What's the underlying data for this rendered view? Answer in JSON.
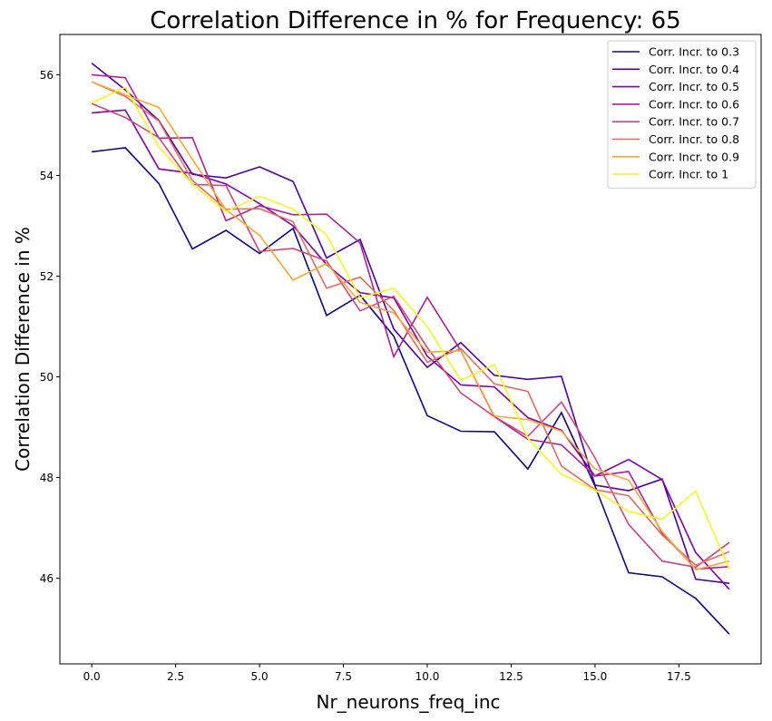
{
  "chart_data": {
    "type": "line",
    "title": "Correlation Difference in % for Frequency:  65",
    "xlabel": "Nr_neurons_freq_inc",
    "ylabel": "Correlation Difference in %",
    "xlim": [
      -0.95,
      19.95
    ],
    "ylim": [
      44.3,
      56.8
    ],
    "xticks": [
      0.0,
      2.5,
      5.0,
      7.5,
      10.0,
      12.5,
      15.0,
      17.5
    ],
    "xtick_labels": [
      "0.0",
      "2.5",
      "5.0",
      "7.5",
      "10.0",
      "12.5",
      "15.0",
      "17.5"
    ],
    "yticks": [
      46,
      48,
      50,
      52,
      54,
      56
    ],
    "ytick_labels": [
      "46",
      "48",
      "50",
      "52",
      "54",
      "56"
    ],
    "grid": false,
    "legend_position": "top-right",
    "x": [
      0,
      1,
      2,
      3,
      4,
      5,
      6,
      7,
      8,
      9,
      10,
      11,
      12,
      13,
      14,
      15,
      16,
      17,
      18,
      19
    ],
    "series": [
      {
        "name": "Corr. Incr. to 0.3",
        "color": "#0d0887",
        "values": [
          54.47,
          54.55,
          53.84,
          52.54,
          52.91,
          52.45,
          52.95,
          51.22,
          51.62,
          50.81,
          49.23,
          48.92,
          48.91,
          48.17,
          49.29,
          47.83,
          46.11,
          46.03,
          45.6,
          44.89
        ]
      },
      {
        "name": "Corr. Incr. to 0.4",
        "color": "#4c02a1",
        "values": [
          56.23,
          55.7,
          55.09,
          54.02,
          53.95,
          54.17,
          53.88,
          52.36,
          52.73,
          50.95,
          50.19,
          50.68,
          50.03,
          49.95,
          50.01,
          47.85,
          47.74,
          47.97,
          45.98,
          45.9
        ]
      },
      {
        "name": "Corr. Incr. to 0.5",
        "color": "#7e03a8",
        "values": [
          55.24,
          55.3,
          54.13,
          54.04,
          53.83,
          53.44,
          53.0,
          52.23,
          51.67,
          51.57,
          50.41,
          49.84,
          49.8,
          49.19,
          48.94,
          48.03,
          48.36,
          47.96,
          46.51,
          45.78
        ]
      },
      {
        "name": "Corr. Incr. to 0.6",
        "color": "#a92395",
        "values": [
          56.0,
          55.94,
          54.74,
          54.75,
          53.1,
          53.4,
          53.22,
          53.23,
          52.66,
          50.4,
          51.58,
          50.52,
          49.21,
          48.76,
          48.65,
          48.03,
          48.12,
          46.9,
          46.18,
          46.23
        ]
      },
      {
        "name": "Corr. Incr. to 0.7",
        "color": "#cc4778",
        "values": [
          55.43,
          55.15,
          54.75,
          53.82,
          53.8,
          52.49,
          52.55,
          52.3,
          51.31,
          51.6,
          50.58,
          49.68,
          49.21,
          48.82,
          49.5,
          48.39,
          47.07,
          46.34,
          46.22,
          46.71
        ]
      },
      {
        "name": "Corr. Incr. to 0.8",
        "color": "#e56b5d",
        "values": [
          55.86,
          55.57,
          55.08,
          53.9,
          53.33,
          53.34,
          53.08,
          51.76,
          51.98,
          51.32,
          50.29,
          50.56,
          49.86,
          49.71,
          48.23,
          47.76,
          47.64,
          46.86,
          46.26,
          46.53
        ]
      },
      {
        "name": "Corr. Incr. to 0.9",
        "color": "#fca636",
        "values": [
          55.86,
          55.6,
          55.35,
          54.32,
          53.32,
          52.81,
          51.92,
          52.25,
          51.48,
          51.27,
          50.49,
          50.52,
          49.22,
          49.15,
          48.92,
          48.17,
          47.95,
          46.93,
          46.17,
          46.34
        ]
      },
      {
        "name": "Corr. Incr. to 1",
        "color": "#f0f921",
        "values": [
          55.44,
          55.75,
          54.57,
          53.83,
          53.28,
          53.59,
          53.33,
          52.82,
          51.57,
          51.76,
          51.0,
          49.93,
          50.24,
          48.78,
          48.07,
          47.75,
          47.33,
          47.17,
          47.73,
          46.19
        ]
      }
    ]
  }
}
